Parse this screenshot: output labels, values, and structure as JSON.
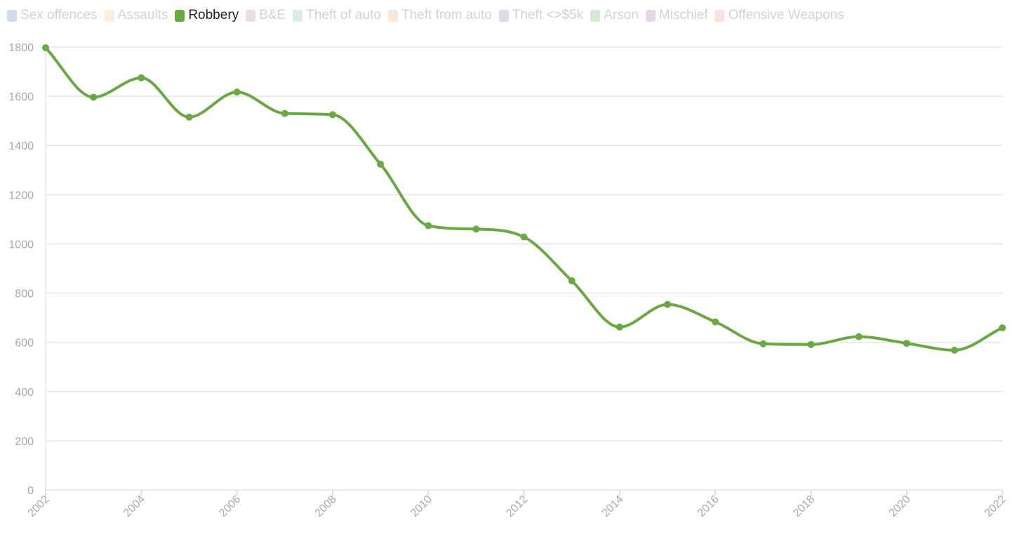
{
  "legend": {
    "items": [
      {
        "label": "Sex offences",
        "color": "#4e79a7",
        "active": false
      },
      {
        "label": "Assaults",
        "color": "#f2c75c",
        "active": false
      },
      {
        "label": "Robbery",
        "color": "#6aa843",
        "active": true
      },
      {
        "label": "B&E",
        "color": "#b07aa1",
        "active": false
      },
      {
        "label": "Theft of auto",
        "color": "#76b7b2",
        "active": false
      },
      {
        "label": "Theft from auto",
        "color": "#f5a45e",
        "active": false
      },
      {
        "label": "Theft <>$5k",
        "color": "#7b74b0",
        "active": false
      },
      {
        "label": "Arson",
        "color": "#59a86e",
        "active": false
      },
      {
        "label": "Mischief",
        "color": "#8c6d9c",
        "active": false
      },
      {
        "label": "Offensive Weapons",
        "color": "#ef8a7f",
        "active": false
      }
    ]
  },
  "chart_data": {
    "type": "line",
    "curve": "smooth",
    "markers": true,
    "grid": true,
    "x": [
      2002,
      2003,
      2004,
      2005,
      2006,
      2007,
      2008,
      2009,
      2010,
      2011,
      2012,
      2013,
      2014,
      2015,
      2016,
      2017,
      2018,
      2019,
      2020,
      2021,
      2022
    ],
    "series": [
      {
        "name": "Robbery",
        "color": "#6aa843",
        "values": [
          1797,
          1596,
          1675,
          1515,
          1617,
          1530,
          1525,
          1324,
          1074,
          1060,
          1028,
          850,
          662,
          754,
          683,
          594,
          591,
          623,
          596,
          568,
          659
        ]
      }
    ],
    "xlim": [
      2002,
      2022
    ],
    "ylim": [
      0,
      1800
    ],
    "yticks": [
      "0",
      "200",
      "400",
      "600",
      "800",
      "1000",
      "1200",
      "1400",
      "1600",
      "1800"
    ],
    "xticks": [
      "2002",
      "2004",
      "2006",
      "2008",
      "2010",
      "2012",
      "2014",
      "2016",
      "2018",
      "2020",
      "2022"
    ]
  }
}
